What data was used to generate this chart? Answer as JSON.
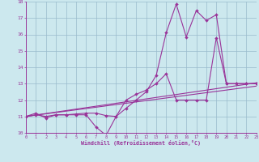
{
  "xlabel": "Windchill (Refroidissement éolien,°C)",
  "bg_color": "#cce8ee",
  "line_color": "#993399",
  "grid_color": "#99bbcc",
  "xlim": [
    0,
    23
  ],
  "ylim": [
    10,
    18
  ],
  "xticks": [
    0,
    1,
    2,
    3,
    4,
    5,
    6,
    7,
    8,
    9,
    10,
    11,
    12,
    13,
    14,
    15,
    16,
    17,
    18,
    19,
    20,
    21,
    22,
    23
  ],
  "yticks": [
    10,
    11,
    12,
    13,
    14,
    15,
    16,
    17,
    18
  ],
  "series": [
    {
      "x": [
        0,
        1,
        2,
        3,
        4,
        5,
        6,
        7,
        8,
        9,
        10,
        11,
        12,
        13,
        14,
        15,
        16,
        17,
        18,
        19,
        20,
        21,
        22,
        23
      ],
      "y": [
        11.0,
        11.2,
        10.9,
        11.1,
        11.1,
        11.1,
        11.1,
        10.35,
        9.85,
        11.0,
        12.0,
        12.35,
        12.6,
        13.0,
        13.6,
        12.0,
        12.0,
        12.0,
        12.0,
        15.8,
        13.0,
        13.0,
        13.0,
        13.0
      ],
      "marker": true
    },
    {
      "x": [
        0,
        1,
        2,
        3,
        4,
        5,
        6,
        7,
        8,
        9,
        10,
        11,
        12,
        13,
        14,
        15,
        16,
        17,
        18,
        19,
        20,
        21,
        22,
        23
      ],
      "y": [
        11.0,
        11.1,
        11.0,
        11.1,
        11.1,
        11.15,
        11.2,
        11.2,
        11.05,
        11.0,
        11.5,
        12.0,
        12.5,
        13.5,
        16.1,
        17.85,
        15.85,
        17.45,
        16.85,
        17.2,
        13.0,
        13.0,
        13.0,
        13.0
      ],
      "marker": true
    },
    {
      "x": [
        0,
        23
      ],
      "y": [
        11.0,
        12.85
      ],
      "marker": false
    },
    {
      "x": [
        0,
        23
      ],
      "y": [
        11.0,
        13.05
      ],
      "marker": false
    }
  ]
}
